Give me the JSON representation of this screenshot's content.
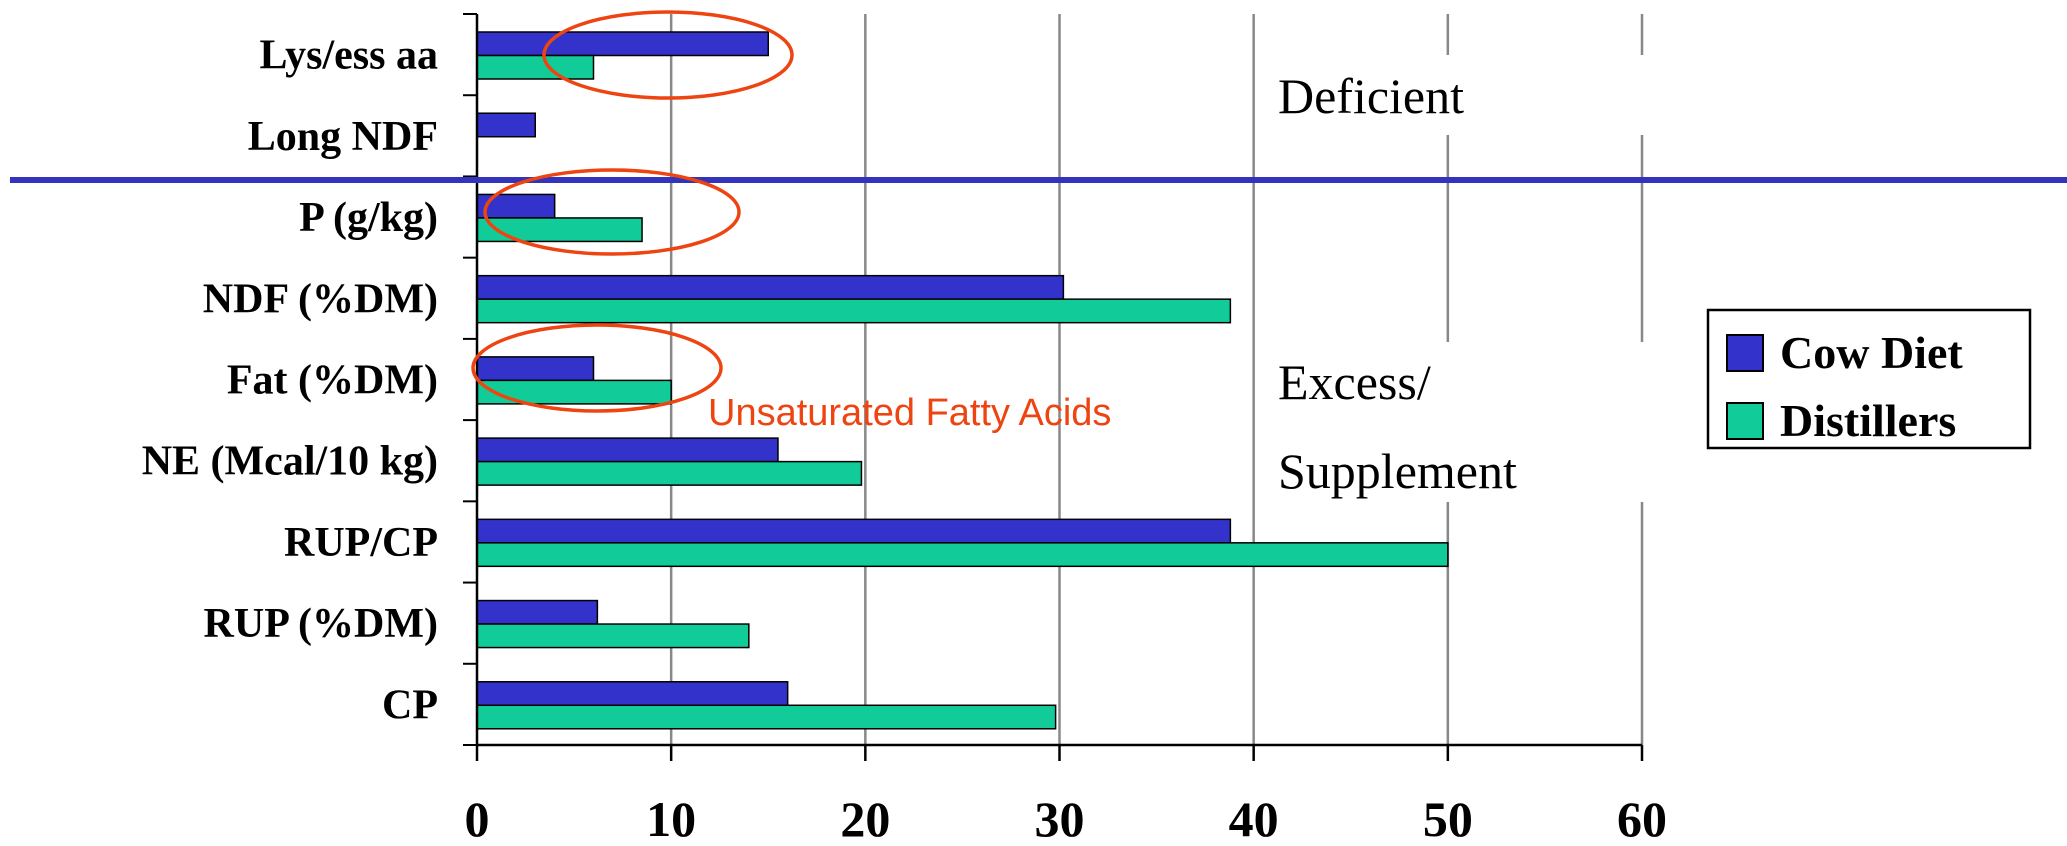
{
  "chart_data": {
    "type": "bar",
    "orientation": "horizontal",
    "categories": [
      "Lys/ess aa",
      "Long NDF",
      "P (g/kg)",
      "NDF (%DM)",
      "Fat (%DM)",
      "NE (Mcal/10 kg)",
      "RUP/CP",
      "RUP (%DM)",
      "CP"
    ],
    "series": [
      {
        "name": "Cow Diet",
        "color": "#3333cc",
        "values": [
          15,
          3,
          4,
          30.2,
          6,
          15.5,
          38.8,
          6.2,
          16
        ]
      },
      {
        "name": "Distillers",
        "color": "#11cc99",
        "values": [
          6,
          null,
          8.5,
          38.8,
          10,
          19.8,
          50,
          14,
          29.8
        ]
      }
    ],
    "xlim": [
      0,
      60
    ],
    "xticks": [
      "0",
      "10",
      "20",
      "30",
      "40",
      "50",
      "60"
    ],
    "grid": "vertical",
    "legend_position": "right",
    "zones": [
      {
        "label_lines": [
          "Deficient"
        ]
      },
      {
        "label_lines": [
          "Excess/",
          "Supplement"
        ]
      }
    ],
    "divider_color": "#3333bb",
    "annotation": {
      "text": "Unsaturated Fatty Acids",
      "color": "#ee4411"
    },
    "highlight_circles": [
      "Lys/ess aa",
      "P (g/kg)",
      "Fat (%DM)"
    ]
  }
}
